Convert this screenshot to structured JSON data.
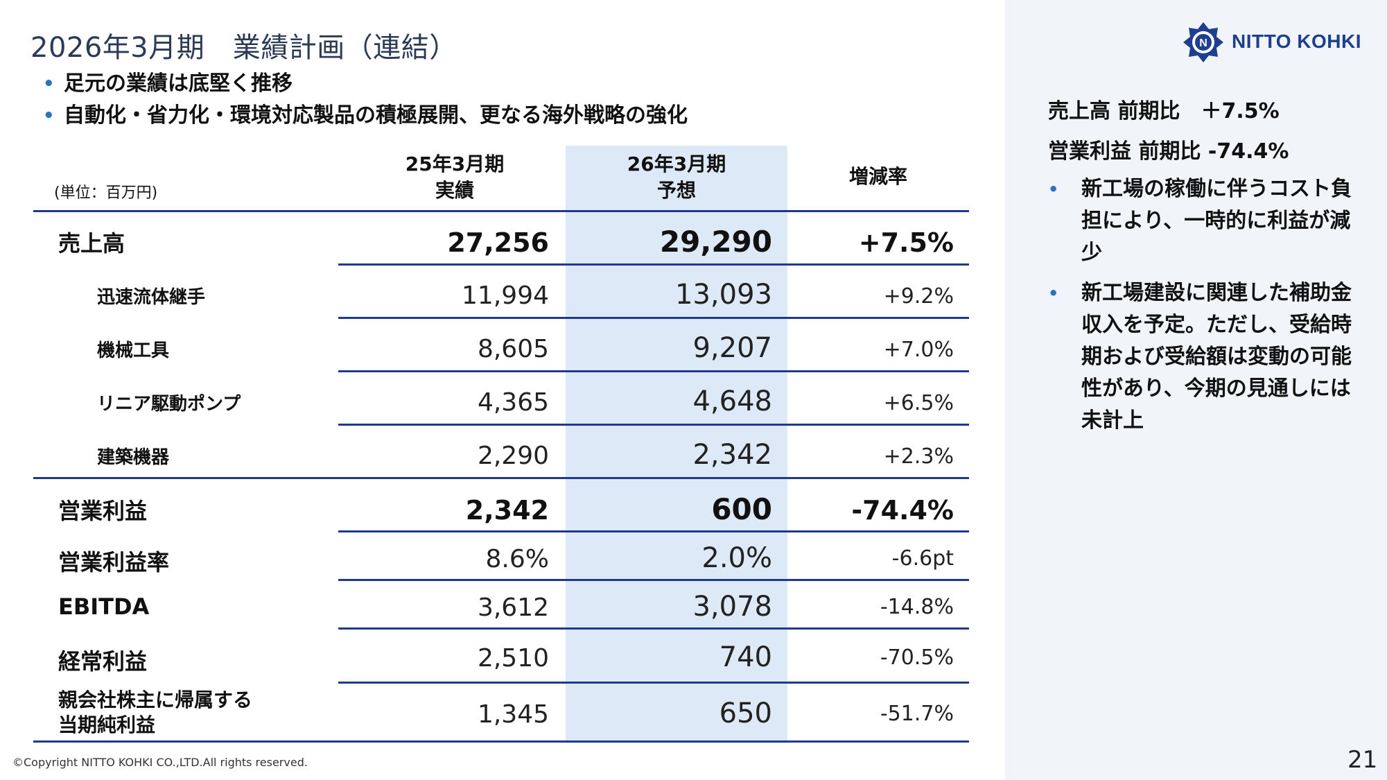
{
  "title": "2026年3月期　業績計画（連結）",
  "bullets": [
    "足元の業績は底堅く推移",
    "自動化・省力化・環境対応製品の積極展開、更なる海外戦略の強化"
  ],
  "table": {
    "unit": "(単位：百万円)",
    "col_prev": [
      "25年3月期",
      "実績"
    ],
    "col_next": [
      "26年3月期",
      "予想"
    ],
    "col_rate": "増減率",
    "rows": [
      {
        "label": "売上高",
        "prev": "27,256",
        "next": "29,290",
        "rate": "+7.5%"
      },
      {
        "label": "迅速流体継手",
        "prev": "11,994",
        "next": "13,093",
        "rate": "+9.2%"
      },
      {
        "label": "機械工具",
        "prev": "8,605",
        "next": "9,207",
        "rate": "+7.0%"
      },
      {
        "label": "リニア駆動ポンプ",
        "prev": "4,365",
        "next": "4,648",
        "rate": "+6.5%"
      },
      {
        "label": "建築機器",
        "prev": "2,290",
        "next": "2,342",
        "rate": "+2.3%"
      },
      {
        "label": "営業利益",
        "prev": "2,342",
        "next": "600",
        "rate": "-74.4%"
      },
      {
        "label": "営業利益率",
        "prev": "8.6%",
        "next": "2.0%",
        "rate": "-6.6pt"
      },
      {
        "label": "EBITDA",
        "prev": "3,612",
        "next": "3,078",
        "rate": "-14.8%"
      },
      {
        "label": "経常利益",
        "prev": "2,510",
        "next": "740",
        "rate": "-70.5%"
      },
      {
        "label": "親会社株主に帰属する\n当期純利益",
        "label_line1": "親会社株主に帰属する",
        "label_line2": "当期純利益",
        "prev": "1,345",
        "next": "650",
        "rate": "-51.7%"
      }
    ]
  },
  "logo": {
    "text": "NITTO KOHKI",
    "color": "#1e3f8f"
  },
  "summary": {
    "sales": "売上高 前期比　＋7.5%",
    "op": "営業利益 前期比  -74.4%"
  },
  "right_bullets": [
    "新工場の稼働に伴うコスト負担により、一時的に利益が減少",
    "新工場建設に関連した補助金収入を予定。ただし、受給時期および受給額は変動の可能性があり、今期の見通しには未計上"
  ],
  "copyright": "©Copyright NITTO KOHKI CO.,LTD.All rights reserved.",
  "page_number": "21",
  "colors": {
    "accent": "#2a72c4",
    "rule": "#1f3a8a",
    "highlight": "#dde9f6",
    "title": "#2b3a55"
  }
}
